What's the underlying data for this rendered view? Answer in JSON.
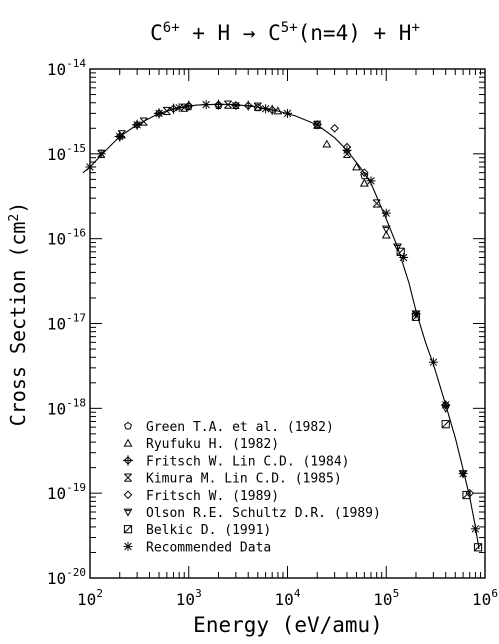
{
  "chart_data": {
    "type": "scatter",
    "title": {
      "base1": "C",
      "sup1": "6+",
      "mid1": " + H → C",
      "sup2": "5+",
      "mid2": "(n=4) + H",
      "sup3": "+"
    },
    "xlabel": "Energy (eV/amu)",
    "ylabel": {
      "main": "Cross Section (cm",
      "sup": "2",
      "close": ")"
    },
    "x_scale": "log",
    "y_scale": "log",
    "xlim": [
      100,
      1000000
    ],
    "ylim": [
      1e-20,
      1e-14
    ],
    "x_ticks": [
      {
        "value": 100,
        "base": "10",
        "exp": "2"
      },
      {
        "value": 1000,
        "base": "10",
        "exp": "3"
      },
      {
        "value": 10000,
        "base": "10",
        "exp": "4"
      },
      {
        "value": 100000,
        "base": "10",
        "exp": "5"
      },
      {
        "value": 1000000,
        "base": "10",
        "exp": "6"
      }
    ],
    "y_ticks": [
      {
        "value": 1e-14,
        "base": "10",
        "exp": "-14"
      },
      {
        "value": 1e-15,
        "base": "10",
        "exp": "-15"
      },
      {
        "value": 1e-16,
        "base": "10",
        "exp": "-16"
      },
      {
        "value": 1e-17,
        "base": "10",
        "exp": "-17"
      },
      {
        "value": 1e-18,
        "base": "10",
        "exp": "-18"
      },
      {
        "value": 1e-19,
        "base": "10",
        "exp": "-19"
      },
      {
        "value": 1e-20,
        "base": "10",
        "exp": "-20"
      }
    ],
    "legend_position": "bottom-left",
    "series": [
      {
        "name": "Green T.A. et al. (1982)",
        "marker": "pentagon",
        "points": [
          [
            1000,
            3.6e-15
          ],
          [
            2000,
            3.7e-15
          ],
          [
            3000,
            3.7e-15
          ],
          [
            5000,
            3.5e-15
          ],
          [
            20000,
            2.2e-15
          ],
          [
            60000,
            5.5e-16
          ]
        ]
      },
      {
        "name": "Ryufuku H. (1982)",
        "marker": "triangle-up",
        "points": [
          [
            8000,
            3.2e-15
          ],
          [
            25000,
            1.3e-15
          ],
          [
            50000,
            7e-16
          ],
          [
            60000,
            4.5e-16
          ],
          [
            100000,
            1.1e-16
          ]
        ]
      },
      {
        "name": "Fritsch W. Lin C.D. (1984)",
        "marker": "plus-diamond",
        "points": [
          [
            200,
            1.6e-15
          ],
          [
            300,
            2.2e-15
          ],
          [
            500,
            3e-15
          ],
          [
            700,
            3.4e-15
          ],
          [
            1000,
            3.7e-15
          ],
          [
            2000,
            3.8e-15
          ],
          [
            4000,
            3.7e-15
          ],
          [
            7000,
            3.3e-15
          ]
        ]
      },
      {
        "name": "Kimura M. Lin C.D. (1985)",
        "marker": "x-box",
        "points": [
          [
            130,
            1e-15
          ],
          [
            210,
            1.7e-15
          ],
          [
            350,
            2.4e-15
          ],
          [
            600,
            3.2e-15
          ],
          [
            900,
            3.5e-15
          ],
          [
            2500,
            3.8e-15
          ],
          [
            5000,
            3.6e-15
          ],
          [
            20000,
            2.2e-15
          ],
          [
            40000,
            1e-15
          ],
          [
            80000,
            2.6e-16
          ]
        ]
      },
      {
        "name": "Fritsch W. (1989)",
        "marker": "diamond",
        "points": [
          [
            30000,
            2e-15
          ],
          [
            40000,
            1.2e-15
          ],
          [
            60000,
            6e-16
          ],
          [
            400000,
            1.1e-18
          ],
          [
            700000,
            1e-19
          ]
        ]
      },
      {
        "name": "Olson R.E. Schultz D.R. (1989)",
        "marker": "triangle-down",
        "points": [
          [
            100000,
            1.3e-16
          ],
          [
            130000,
            8e-17
          ],
          [
            200000,
            1.3e-17
          ],
          [
            400000,
            1e-18
          ],
          [
            600000,
            1.7e-19
          ]
        ]
      },
      {
        "name": "Belkic D. (1991)",
        "marker": "square",
        "points": [
          [
            140000,
            7e-17
          ],
          [
            200000,
            1.2e-17
          ],
          [
            400000,
            6.5e-19
          ],
          [
            650000,
            9.5e-20
          ],
          [
            850000,
            2.3e-20
          ]
        ]
      },
      {
        "name": "Recommended Data",
        "marker": "asterisk",
        "points": [
          [
            100,
            7e-16
          ],
          [
            130,
            1e-15
          ],
          [
            200,
            1.6e-15
          ],
          [
            300,
            2.2e-15
          ],
          [
            500,
            3e-15
          ],
          [
            800,
            3.5e-15
          ],
          [
            1500,
            3.8e-15
          ],
          [
            3000,
            3.7e-15
          ],
          [
            6000,
            3.4e-15
          ],
          [
            10000,
            3e-15
          ],
          [
            20000,
            2.2e-15
          ],
          [
            40000,
            1.1e-15
          ],
          [
            70000,
            4.8e-16
          ],
          [
            100000,
            2e-16
          ],
          [
            150000,
            6e-17
          ],
          [
            200000,
            1.3e-17
          ],
          [
            300000,
            3.5e-18
          ],
          [
            400000,
            1.1e-18
          ],
          [
            600000,
            1.7e-19
          ],
          [
            800000,
            3.8e-20
          ]
        ]
      }
    ],
    "fit_curve": [
      [
        85,
        6e-16
      ],
      [
        100,
        7e-16
      ],
      [
        150,
        1.15e-15
      ],
      [
        200,
        1.6e-15
      ],
      [
        300,
        2.2e-15
      ],
      [
        500,
        3e-15
      ],
      [
        800,
        3.5e-15
      ],
      [
        1200,
        3.75e-15
      ],
      [
        2000,
        3.85e-15
      ],
      [
        3000,
        3.8e-15
      ],
      [
        5000,
        3.55e-15
      ],
      [
        8000,
        3.2e-15
      ],
      [
        12000,
        2.8e-15
      ],
      [
        20000,
        2.2e-15
      ],
      [
        30000,
        1.55e-15
      ],
      [
        40000,
        1.1e-15
      ],
      [
        55000,
        6.8e-16
      ],
      [
        70000,
        4.5e-16
      ],
      [
        100000,
        1.7e-16
      ],
      [
        130000,
        8e-17
      ],
      [
        170000,
        3e-17
      ],
      [
        200000,
        1.4e-17
      ],
      [
        250000,
        6e-18
      ],
      [
        300000,
        3.3e-18
      ],
      [
        400000,
        1.1e-18
      ],
      [
        500000,
        4.5e-19
      ],
      [
        600000,
        1.9e-19
      ],
      [
        700000,
        9e-20
      ],
      [
        800000,
        4e-20
      ],
      [
        870000,
        2.2e-20
      ]
    ]
  }
}
